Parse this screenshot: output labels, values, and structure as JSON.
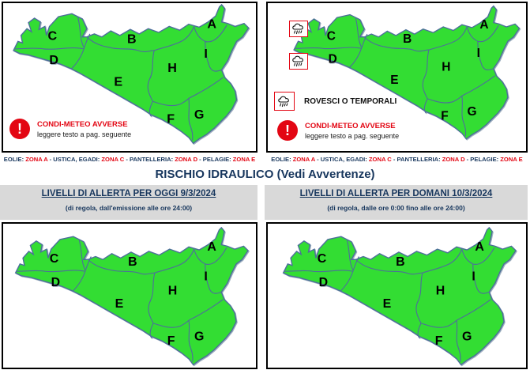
{
  "colors": {
    "zone_green": "#33dd33",
    "map_stroke": "#4d6e9b",
    "alert_red": "#e30613",
    "navy": "#17365d",
    "header_bg": "#d9d9d9"
  },
  "title": "RISCHIO IDRAULICO (Vedi Avvertenze)",
  "zones": [
    "A",
    "B",
    "C",
    "D",
    "E",
    "F",
    "G",
    "H",
    "I"
  ],
  "island_caption_segments": [
    {
      "text": "EOLIE: ",
      "color": "navy"
    },
    {
      "text": "ZONA A",
      "color": "red"
    },
    {
      "text": " - USTICA, EGADI: ",
      "color": "navy"
    },
    {
      "text": "ZONA C",
      "color": "red"
    },
    {
      "text": " - PANTELLERIA: ",
      "color": "navy"
    },
    {
      "text": "ZONA D",
      "color": "red"
    },
    {
      "text": " - PELAGIE: ",
      "color": "navy"
    },
    {
      "text": "ZONA E",
      "color": "red"
    }
  ],
  "warning_legend": {
    "title": "CONDI-METEO AVVERSE",
    "subtitle": "leggere testo a pag. seguente"
  },
  "storm_legend": {
    "label": "ROVESCI O TEMPORALI"
  },
  "headers": {
    "today": {
      "title": "LIVELLI DI ALLERTA PER OGGI 9/3/2024",
      "subtitle": "(di regola, dall'emissione alle ore 24:00)"
    },
    "tomorrow": {
      "title": "LIVELLI DI ALLERTA PER DOMANI 10/3/2024",
      "subtitle": "(di regola, dalle ore 0:00 fino alle ore 24:00)"
    }
  }
}
